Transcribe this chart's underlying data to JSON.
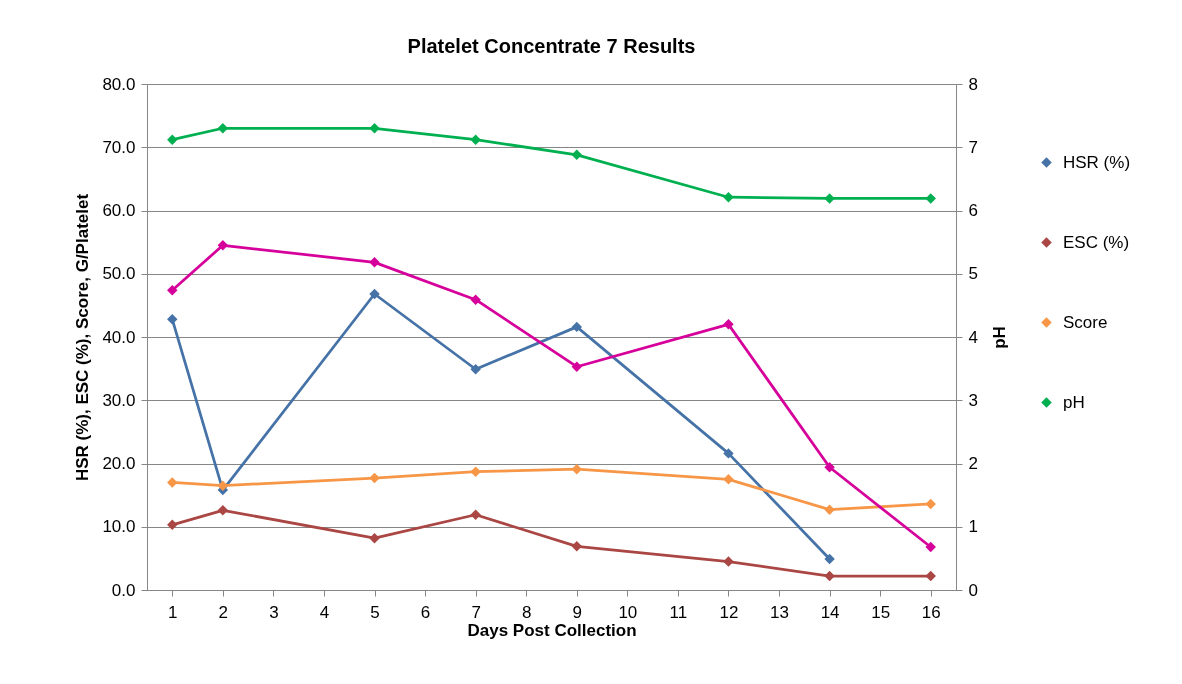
{
  "chart_data": {
    "type": "line",
    "title": "Platelet Concentrate 7 Results",
    "xlabel": "Days Post Collection",
    "ylabel": "HSR (%), ESC (%), Score, G/Platelet",
    "y2label": "pH",
    "x": [
      1,
      2,
      5,
      7,
      9,
      12,
      14,
      16
    ],
    "xlim": [
      0.5,
      16.5
    ],
    "xticks": [
      1,
      2,
      3,
      4,
      5,
      6,
      7,
      8,
      9,
      10,
      11,
      12,
      13,
      14,
      15,
      16
    ],
    "ylim": [
      0,
      80
    ],
    "yticks": [
      {
        "value": 0,
        "label": "0.0"
      },
      {
        "value": 10,
        "label": "10.0"
      },
      {
        "value": 20,
        "label": "20.0"
      },
      {
        "value": 30,
        "label": "30.0"
      },
      {
        "value": 40,
        "label": "40.0"
      },
      {
        "value": 50,
        "label": "50.0"
      },
      {
        "value": 60,
        "label": "60.0"
      },
      {
        "value": 70,
        "label": "70.0"
      },
      {
        "value": 80,
        "label": "80.0"
      }
    ],
    "y2lim": [
      0,
      8
    ],
    "y2ticks": [
      0,
      1,
      2,
      3,
      4,
      5,
      6,
      7,
      8
    ],
    "series": [
      {
        "name": "HSR (%)",
        "color": "#4572a7",
        "values": [
          42.8,
          15.8,
          46.8,
          34.9,
          41.6,
          21.6,
          4.9,
          null
        ]
      },
      {
        "name": "ESC (%)",
        "color": "#aa4643",
        "values": [
          10.3,
          12.6,
          8.2,
          11.9,
          6.9,
          4.5,
          2.2,
          2.2
        ]
      },
      {
        "name": "Score",
        "color": "#f79646",
        "values": [
          17.0,
          16.5,
          17.7,
          18.7,
          19.1,
          17.5,
          12.7,
          13.6
        ]
      },
      {
        "color": "#d6009b",
        "values": [
          47.4,
          54.5,
          51.8,
          45.9,
          35.3,
          42.0,
          19.4,
          6.8
        ]
      },
      {
        "name": "pH",
        "color": "#00b050",
        "axis": "y2",
        "values": [
          7.12,
          7.3,
          7.3,
          7.12,
          6.88,
          6.21,
          6.19,
          6.19
        ]
      }
    ],
    "grid": "y",
    "legend": "right",
    "marker": "diamond",
    "line_style": "solid"
  }
}
